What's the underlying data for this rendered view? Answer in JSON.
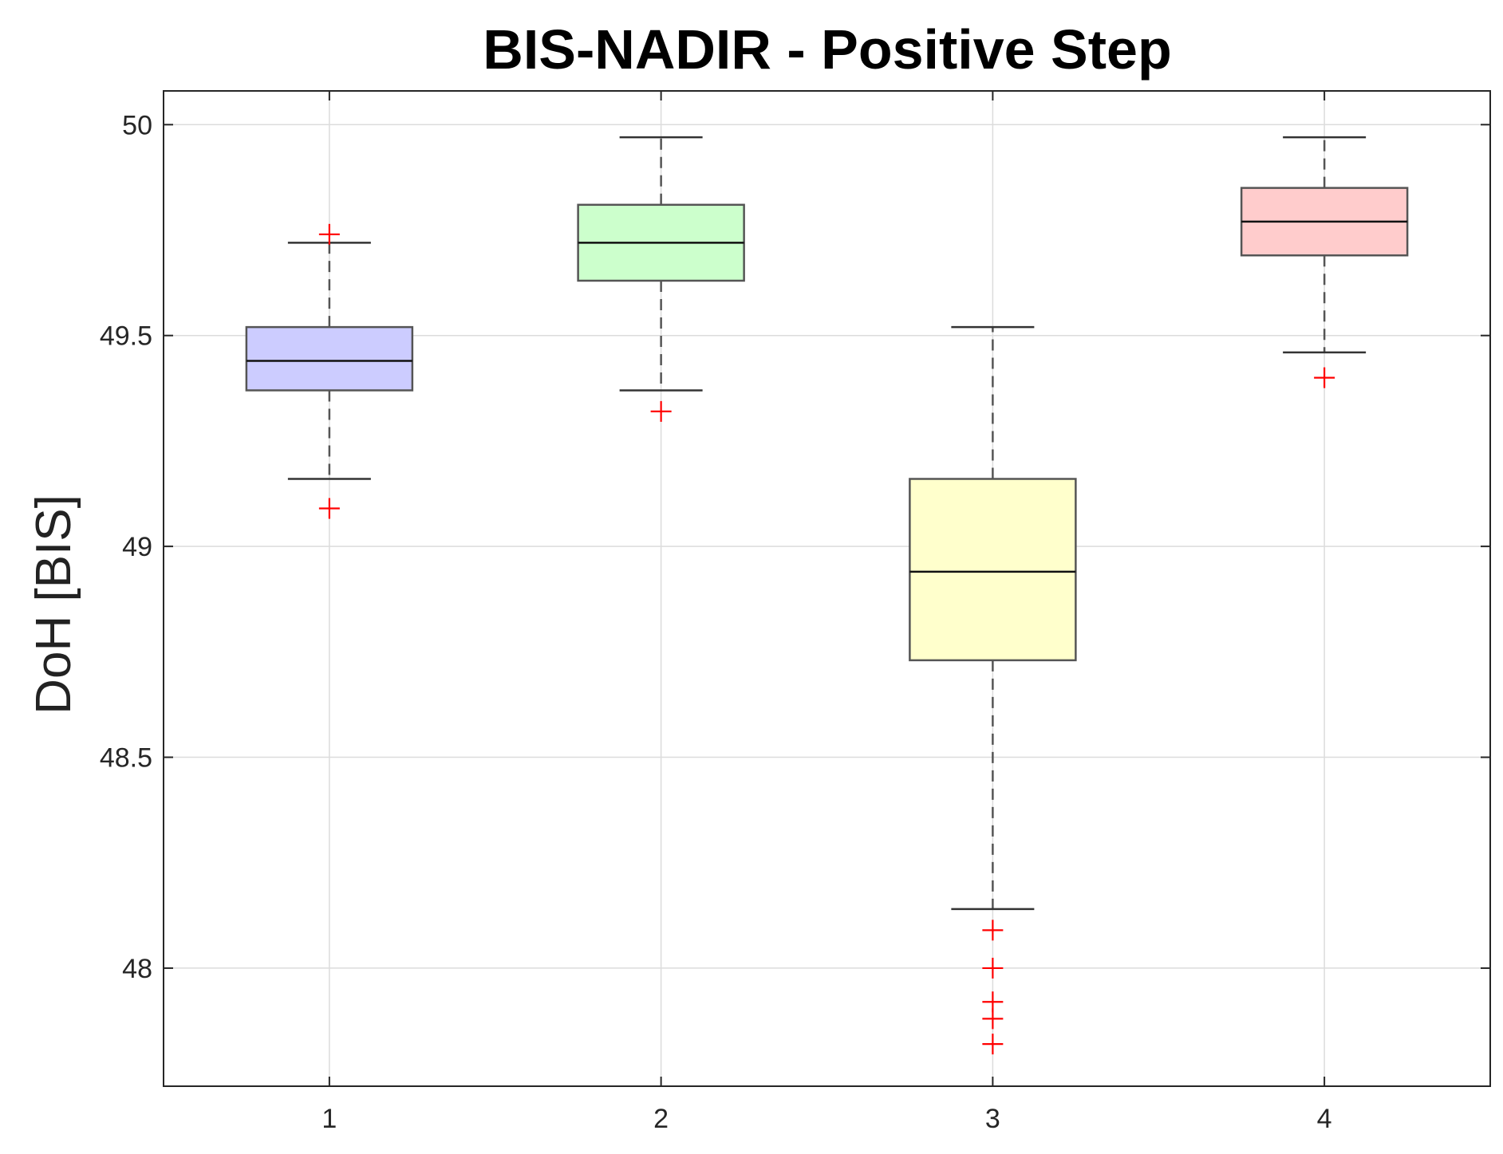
{
  "chart_data": {
    "type": "boxplot",
    "title": "BIS-NADIR - Positive Step",
    "xlabel": "",
    "ylabel": "DoH [BIS]",
    "categories": [
      "1",
      "2",
      "3",
      "4"
    ],
    "xlim": [
      0.5,
      4.5
    ],
    "ylim": [
      47.72,
      50.08
    ],
    "yticks": [
      48,
      48.5,
      49,
      49.5,
      50
    ],
    "grid": true,
    "boxes": [
      {
        "category": "1",
        "q1": 49.37,
        "median": 49.44,
        "q3": 49.52,
        "whisker_low": 49.16,
        "whisker_high": 49.72,
        "outliers": [
          49.74,
          49.09
        ],
        "color": "#ccccff"
      },
      {
        "category": "2",
        "q1": 49.63,
        "median": 49.72,
        "q3": 49.81,
        "whisker_low": 49.37,
        "whisker_high": 49.97,
        "outliers": [
          49.32
        ],
        "color": "#ccffcc"
      },
      {
        "category": "3",
        "q1": 48.73,
        "median": 48.94,
        "q3": 49.16,
        "whisker_low": 48.14,
        "whisker_high": 49.52,
        "outliers": [
          48.09,
          48.0,
          47.92,
          47.88,
          47.82
        ],
        "color": "#ffffcc"
      },
      {
        "category": "4",
        "q1": 49.69,
        "median": 49.77,
        "q3": 49.85,
        "whisker_low": 49.46,
        "whisker_high": 49.97,
        "outliers": [
          49.4
        ],
        "color": "#ffcccc"
      }
    ],
    "outlier_color": "#ff0000"
  }
}
